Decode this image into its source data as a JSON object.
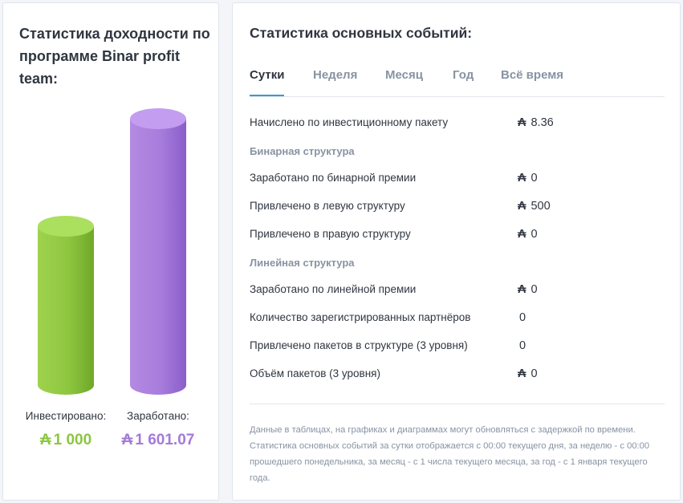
{
  "currency_symbol": "₳",
  "colors": {
    "accent": "#3b97d3",
    "invested": "#8bc63f",
    "earned": "#a37ad8",
    "muted": "#8893a2"
  },
  "left": {
    "title": "Статистика доходности по программе Binar profit team:",
    "invested": {
      "label": "Инвестировано:",
      "value": "1 000",
      "amount": 1000
    },
    "earned": {
      "label": "Заработано:",
      "value": "1 601.07",
      "amount": 1601.07
    }
  },
  "right": {
    "title": "Статистика основных событий:",
    "tabs": [
      {
        "label": "Сутки",
        "active": true
      },
      {
        "label": "Неделя",
        "active": false
      },
      {
        "label": "Месяц",
        "active": false
      },
      {
        "label": "Год",
        "active": false
      },
      {
        "label": "Всё время",
        "active": false
      }
    ],
    "rows": [
      {
        "label": "Начислено по инвестиционному пакету",
        "value": "8.36",
        "currency": true
      },
      {
        "section": "Бинарная структура"
      },
      {
        "label": "Заработано по бинарной премии",
        "value": "0",
        "currency": true
      },
      {
        "label": "Привлечено в левую структуру",
        "value": "500",
        "currency": true
      },
      {
        "label": "Привлечено в правую структуру",
        "value": "0",
        "currency": true
      },
      {
        "section": "Линейная структура"
      },
      {
        "label": "Заработано по линейной премии",
        "value": "0",
        "currency": true
      },
      {
        "label": "Количество зарегистрированных партнёров",
        "value": "0",
        "currency": false
      },
      {
        "label": "Привлечено пакетов в структуре (3 уровня)",
        "value": "0",
        "currency": false
      },
      {
        "label": "Объём пакетов (3 уровня)",
        "value": "0",
        "currency": true
      }
    ],
    "note": "Данные в таблицах, на графиках и диаграммах могут обновляться с задержкой по времени. Статистика основных событий за сутки отображается с 00:00 текущего дня, за неделю - с 00:00 прошедшего понедельника, за месяц - с 1 числа текущего месяца, за год - с 1 января текущего года."
  }
}
